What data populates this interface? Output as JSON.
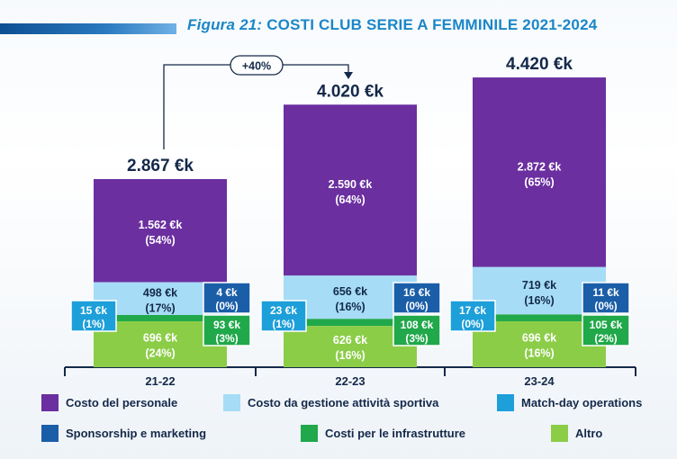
{
  "figure": {
    "label": "Figura 21:",
    "title": "COSTI CLUB SERIE A FEMMINILE 2021-2024"
  },
  "growth_label": "+40%",
  "colors": {
    "personale": "#6b2fa0",
    "gestione": "#a6dcf6",
    "matchday": "#1d9fda",
    "sponsorship": "#1b5ea8",
    "infrastrutture": "#20a84a",
    "altro": "#8ccd48",
    "text_dark": "#14294a",
    "axis": "#14294a"
  },
  "chart_data": {
    "type": "bar",
    "stacked": true,
    "title": "COSTI CLUB SERIE A FEMMINILE 2021-2024",
    "unit": "€k",
    "categories": [
      "21-22",
      "22-23",
      "23-24"
    ],
    "totals": [
      "2.867 €k",
      "4.020 €k",
      "4.420 €k"
    ],
    "total_values": [
      2867,
      4020,
      4420
    ],
    "series": [
      {
        "key": "altro",
        "name": "Altro",
        "values": [
          696,
          626,
          696
        ],
        "labels": [
          "696 €k",
          "626 €k",
          "696 €k"
        ],
        "shares": [
          "(24%)",
          "(16%)",
          "(16%)"
        ]
      },
      {
        "key": "infrastrutture",
        "name": "Costi per le infrastrutture",
        "values": [
          93,
          108,
          105
        ],
        "labels": [
          "93 €k",
          "108 €k",
          "105 €k"
        ],
        "shares": [
          "(3%)",
          "(3%)",
          "(2%)"
        ]
      },
      {
        "key": "sponsorship",
        "name": "Sponsorship e marketing",
        "values": [
          4,
          16,
          11
        ],
        "labels": [
          "4 €k",
          "16 €k",
          "11 €k"
        ],
        "shares": [
          "(0%)",
          "(0%)",
          "(0%)"
        ]
      },
      {
        "key": "matchday",
        "name": "Match-day operations",
        "values": [
          15,
          23,
          17
        ],
        "labels": [
          "15 €k",
          "23 €k",
          "17 €k"
        ],
        "shares": [
          "(1%)",
          "(1%)",
          "(0%)"
        ]
      },
      {
        "key": "gestione",
        "name": "Costo da gestione attività sportiva",
        "values": [
          498,
          656,
          719
        ],
        "labels": [
          "498 €k",
          "656 €k",
          "719 €k"
        ],
        "shares": [
          "(17%)",
          "(16%)",
          "(16%)"
        ]
      },
      {
        "key": "personale",
        "name": "Costo del personale",
        "values": [
          1562,
          2590,
          2872
        ],
        "labels": [
          "1.562 €k",
          "2.590 €k",
          "2.872 €k"
        ],
        "shares": [
          "(54%)",
          "(64%)",
          "(65%)"
        ]
      }
    ],
    "ylim": [
      0,
      4420
    ]
  },
  "legend": [
    {
      "key": "personale",
      "label": "Costo del personale"
    },
    {
      "key": "gestione",
      "label": "Costo da gestione attività sportiva"
    },
    {
      "key": "matchday",
      "label": "Match-day operations"
    },
    {
      "key": "sponsorship",
      "label": "Sponsorship e marketing"
    },
    {
      "key": "infrastrutture",
      "label": "Costi per le infrastrutture"
    },
    {
      "key": "altro",
      "label": "Altro"
    }
  ]
}
